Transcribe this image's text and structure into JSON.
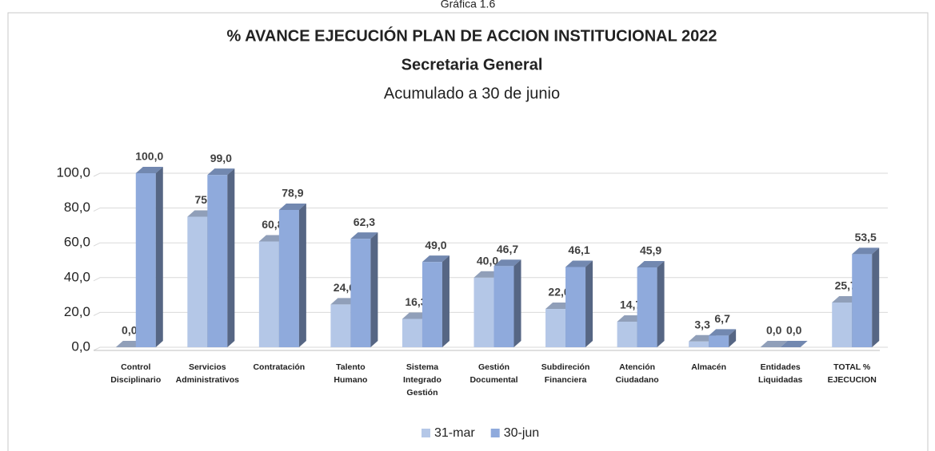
{
  "caption": "Gráfica 1.6",
  "chart_data": {
    "type": "bar3d",
    "title": "% AVANCE EJECUCIÓN PLAN DE ACCION INSTITUCIONAL 2022",
    "subtitle": "Secretaria General",
    "note": "Acumulado a 30 de junio",
    "categories": [
      "Control Disciplinario",
      "Servicios Administrativos",
      "Contratación",
      "Talento Humano",
      "Sistema Integrado Gestión",
      "Gestión Documental",
      "Subdireción Financiera",
      "Atención Ciudadano",
      "Almacén",
      "Entidades Liquidadas",
      "TOTAL % EJECUCION"
    ],
    "series": [
      {
        "name": "31-mar",
        "color": "#b4c7e7",
        "values": [
          0,
          75,
          60.8,
          24.6,
          16.3,
          40,
          22,
          14.7,
          3.3,
          0,
          25.7
        ],
        "value_labels": [
          "0,0",
          "75",
          "60,8",
          "24,6",
          "16,3",
          "40,0",
          "22,0",
          "14,7",
          "3,3",
          "0,0",
          "25,7"
        ]
      },
      {
        "name": "30-jun",
        "color": "#8faadc",
        "values": [
          100,
          99,
          78.9,
          62.3,
          49,
          46.7,
          46.1,
          45.9,
          6.7,
          0,
          53.5
        ],
        "value_labels": [
          "100,0",
          "99,0",
          "78,9",
          "62,3",
          "49,0",
          "46,7",
          "46,1",
          "45,9",
          "6,7",
          "0,0",
          "53,5"
        ]
      }
    ],
    "ylim": [
      0,
      100
    ],
    "yticks": [
      {
        "value": 0,
        "label": "0,0"
      },
      {
        "value": 20,
        "label": "20,0"
      },
      {
        "value": 40,
        "label": "40,0"
      },
      {
        "value": 60,
        "label": "60,0"
      },
      {
        "value": 80,
        "label": "80,0"
      },
      {
        "value": 100,
        "label": "100,0"
      }
    ],
    "grid": true,
    "legend": "bottom"
  }
}
